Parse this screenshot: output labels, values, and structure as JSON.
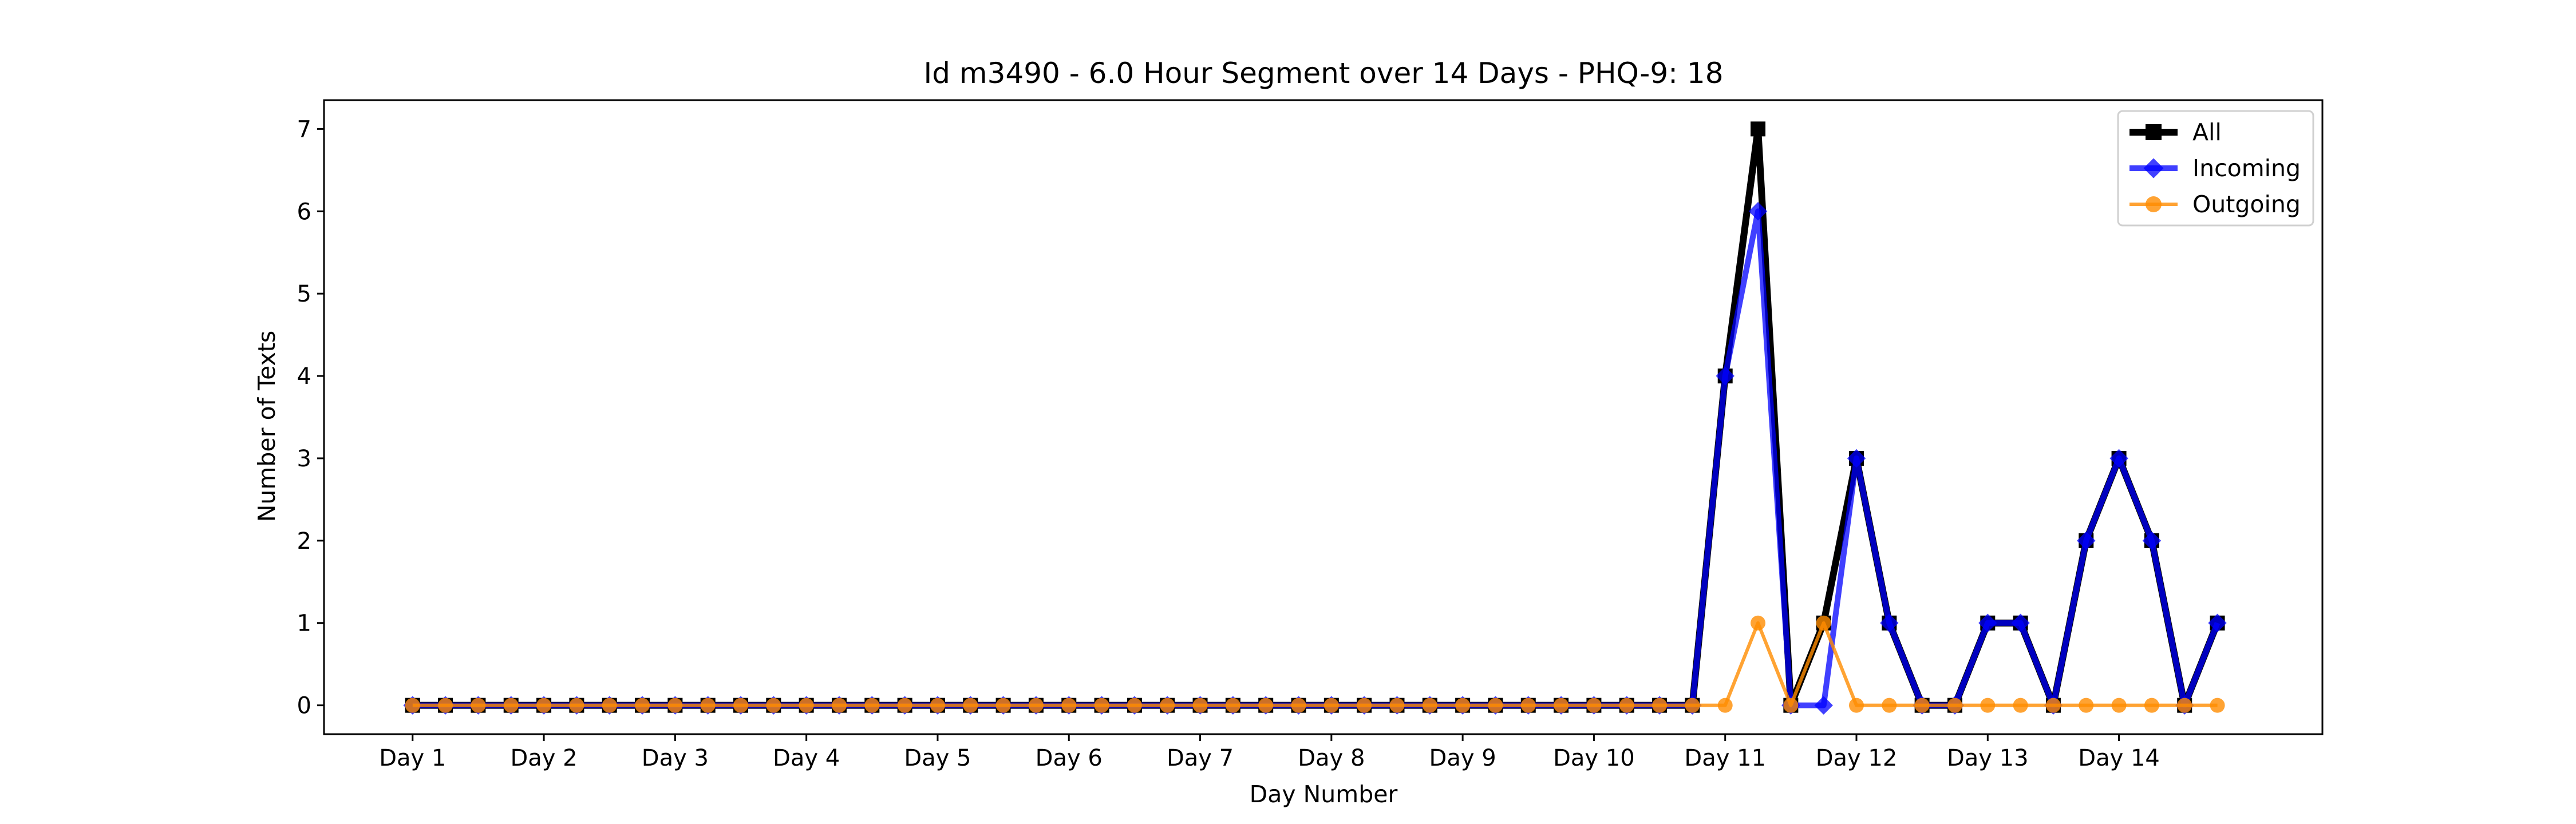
{
  "chart_data": {
    "type": "line",
    "title": "Id m3490 - 6.0 Hour Segment over 14 Days - PHQ-9: 18",
    "xlabel": "Day Number",
    "ylabel": "Number of Texts",
    "x_tick_labels": [
      "Day 1",
      "Day 2",
      "Day 3",
      "Day 4",
      "Day 5",
      "Day 6",
      "Day 7",
      "Day 8",
      "Day 9",
      "Day 10",
      "Day 11",
      "Day 12",
      "Day 13",
      "Day 14"
    ],
    "points_per_day": 4,
    "y_ticks": [
      0,
      1,
      2,
      3,
      4,
      5,
      6,
      7
    ],
    "ylim": [
      -0.35,
      7.35
    ],
    "grid": false,
    "legend_position": "top-right",
    "series": [
      {
        "name": "All",
        "color": "#000000",
        "marker": "square",
        "values": [
          0,
          0,
          0,
          0,
          0,
          0,
          0,
          0,
          0,
          0,
          0,
          0,
          0,
          0,
          0,
          0,
          0,
          0,
          0,
          0,
          0,
          0,
          0,
          0,
          0,
          0,
          0,
          0,
          0,
          0,
          0,
          0,
          0,
          0,
          0,
          0,
          0,
          0,
          0,
          0,
          4,
          7,
          0,
          1,
          3,
          1,
          0,
          0,
          1,
          1,
          0,
          2,
          3,
          2,
          0,
          1
        ]
      },
      {
        "name": "Incoming",
        "color": "#0000ff",
        "marker": "diamond",
        "values": [
          0,
          0,
          0,
          0,
          0,
          0,
          0,
          0,
          0,
          0,
          0,
          0,
          0,
          0,
          0,
          0,
          0,
          0,
          0,
          0,
          0,
          0,
          0,
          0,
          0,
          0,
          0,
          0,
          0,
          0,
          0,
          0,
          0,
          0,
          0,
          0,
          0,
          0,
          0,
          0,
          4,
          6,
          0,
          0,
          3,
          1,
          0,
          0,
          1,
          1,
          0,
          2,
          3,
          2,
          0,
          1
        ]
      },
      {
        "name": "Outgoing",
        "color": "#ff8c00",
        "marker": "circle",
        "values": [
          0,
          0,
          0,
          0,
          0,
          0,
          0,
          0,
          0,
          0,
          0,
          0,
          0,
          0,
          0,
          0,
          0,
          0,
          0,
          0,
          0,
          0,
          0,
          0,
          0,
          0,
          0,
          0,
          0,
          0,
          0,
          0,
          0,
          0,
          0,
          0,
          0,
          0,
          0,
          0,
          0,
          1,
          0,
          1,
          0,
          0,
          0,
          0,
          0,
          0,
          0,
          0,
          0,
          0,
          0,
          0
        ]
      }
    ]
  }
}
